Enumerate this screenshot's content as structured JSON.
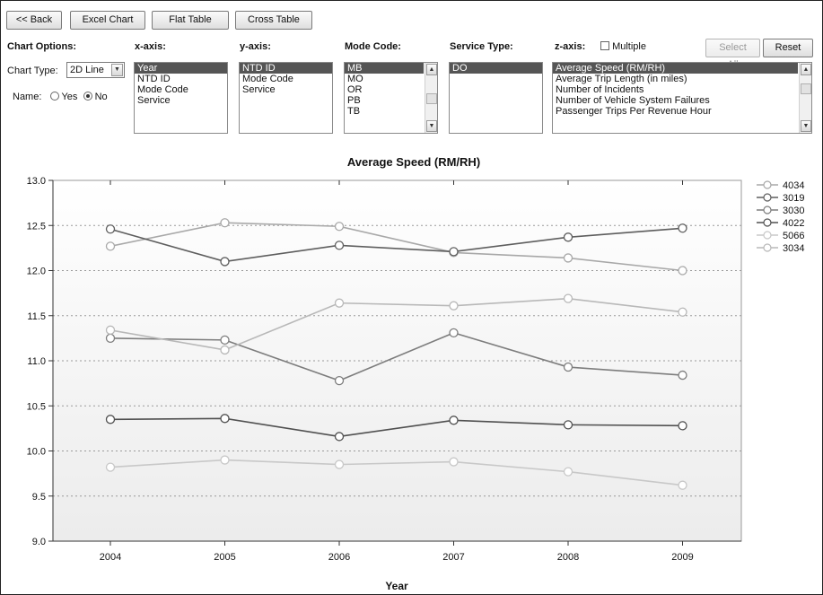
{
  "toolbar": {
    "back": "<< Back",
    "excel_chart": "Excel Chart",
    "flat_table": "Flat Table",
    "cross_table": "Cross Table"
  },
  "chart_options": {
    "header": "Chart Options:",
    "chart_type_label": "Chart Type:",
    "chart_type_value": "2D Line",
    "name_label": "Name:",
    "name_yes": "Yes",
    "name_no": "No",
    "name_selected": "No"
  },
  "x_axis": {
    "header": "x-axis:",
    "options": [
      "Year",
      "NTD ID",
      "Mode Code",
      "Service"
    ],
    "selected": "Year"
  },
  "y_axis": {
    "header": "y-axis:",
    "options": [
      "NTD ID",
      "Mode Code",
      "Service"
    ],
    "selected": "NTD ID"
  },
  "mode_code": {
    "header": "Mode Code:",
    "options": [
      "MB",
      "MO",
      "OR",
      "PB",
      "TB"
    ],
    "selected": "MB"
  },
  "service_type": {
    "header": "Service Type:",
    "options": [
      "DO"
    ],
    "selected": "DO"
  },
  "z_axis": {
    "header": "z-axis:",
    "multiple_label": "Multiple",
    "select_all": "Select All",
    "reset": "Reset",
    "options": [
      "Average Speed (RM/RH)",
      "Average Trip Length (in miles)",
      "Number of Incidents",
      "Number of Vehicle System Failures",
      "Passenger Trips Per Revenue Hour"
    ],
    "selected": "Average Speed (RM/RH)"
  },
  "chart_data": {
    "type": "line",
    "title": "Average Speed (RM/RH)",
    "xlabel": "Year",
    "ylabel": "",
    "categories": [
      "2004",
      "2005",
      "2006",
      "2007",
      "2008",
      "2009"
    ],
    "ylim": [
      9.0,
      13.0
    ],
    "yticks": [
      "9.0",
      "9.5",
      "10.0",
      "10.5",
      "11.0",
      "11.5",
      "12.0",
      "12.5",
      "13.0"
    ],
    "grid": true,
    "legend_position": "right",
    "series": [
      {
        "name": "4034",
        "color": "#a8a8a8",
        "values": [
          12.27,
          12.53,
          12.49,
          12.2,
          12.14,
          12.0
        ]
      },
      {
        "name": "3019",
        "color": "#5e5e5e",
        "values": [
          12.46,
          12.1,
          12.28,
          12.21,
          12.37,
          12.47
        ]
      },
      {
        "name": "3030",
        "color": "#7d7d7d",
        "values": [
          11.25,
          11.23,
          10.78,
          11.31,
          10.93,
          10.84
        ]
      },
      {
        "name": "4022",
        "color": "#505050",
        "values": [
          10.35,
          10.36,
          10.16,
          10.34,
          10.29,
          10.28
        ]
      },
      {
        "name": "5066",
        "color": "#c8c8c8",
        "values": [
          9.82,
          9.9,
          9.85,
          9.88,
          9.77,
          9.62
        ]
      },
      {
        "name": "3034",
        "color": "#b8b8b8",
        "values": [
          11.34,
          11.12,
          11.64,
          11.61,
          11.69,
          11.54
        ]
      }
    ]
  }
}
